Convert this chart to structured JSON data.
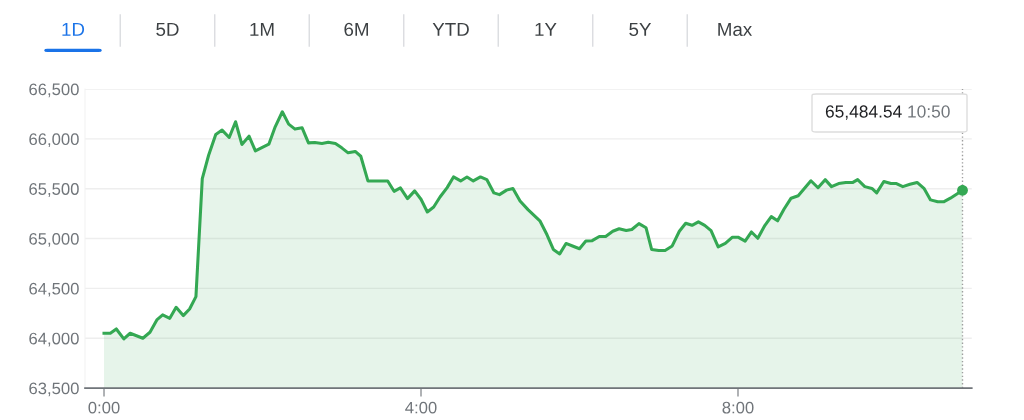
{
  "chart_data": {
    "type": "area",
    "x": [
      0,
      0.08,
      0.155,
      0.25,
      0.33,
      0.49,
      0.58,
      0.67,
      0.74,
      0.83,
      0.91,
      1.0,
      1.08,
      1.16,
      1.24,
      1.32,
      1.41,
      1.49,
      1.58,
      1.66,
      1.74,
      1.83,
      1.91,
      2.08,
      2.16,
      2.25,
      2.33,
      2.41,
      2.5,
      2.58,
      2.66,
      2.75,
      2.83,
      2.92,
      3.0,
      3.08,
      3.17,
      3.24,
      3.33,
      3.58,
      3.66,
      3.74,
      3.83,
      3.92,
      4.0,
      4.08,
      4.16,
      4.24,
      4.33,
      4.41,
      4.5,
      4.58,
      4.66,
      4.75,
      4.83,
      4.92,
      4.99,
      5.08,
      5.16,
      5.25,
      5.35,
      5.5,
      5.59,
      5.67,
      5.75,
      5.83,
      5.92,
      6.0,
      6.08,
      6.16,
      6.25,
      6.33,
      6.42,
      6.5,
      6.59,
      6.66,
      6.75,
      6.84,
      6.91,
      7.0,
      7.08,
      7.17,
      7.26,
      7.34,
      7.42,
      7.5,
      7.58,
      7.66,
      7.75,
      7.84,
      7.93,
      8.0,
      8.09,
      8.17,
      8.25,
      8.34,
      8.42,
      8.5,
      8.58,
      8.67,
      8.76,
      8.92,
      9.01,
      9.1,
      9.18,
      9.27,
      9.36,
      9.45,
      9.51,
      9.6,
      9.69,
      9.75,
      9.84,
      9.93,
      10.0,
      10.08,
      10.17,
      10.26,
      10.35,
      10.43,
      10.52,
      10.6,
      10.68,
      10.833
    ],
    "series": [
      {
        "color": "#34a853",
        "values": [
          64050,
          64050,
          64093,
          63993,
          64050,
          64000,
          64060,
          64187,
          64234,
          64200,
          64311,
          64227,
          64294,
          64418,
          65602,
          65836,
          66044,
          66088,
          66014,
          66172,
          65944,
          66027,
          65880,
          65947,
          66121,
          66272,
          66148,
          66098,
          66111,
          65960,
          65964,
          65954,
          65967,
          65954,
          65910,
          65860,
          65874,
          65826,
          65578,
          65578,
          65474,
          65508,
          65401,
          65478,
          65394,
          65267,
          65317,
          65417,
          65511,
          65618,
          65578,
          65618,
          65578,
          65618,
          65592,
          65458,
          65441,
          65486,
          65503,
          65377,
          65290,
          65178,
          65038,
          64891,
          64846,
          64951,
          64923,
          64898,
          64975,
          64979,
          65021,
          65021,
          65073,
          65098,
          65080,
          65091,
          65150,
          65108,
          64891,
          64881,
          64881,
          64926,
          65073,
          65154,
          65133,
          65168,
          65133,
          65080,
          64916,
          64951,
          65014,
          65014,
          64975,
          65066,
          65003,
          65133,
          65220,
          65178,
          65294,
          65405,
          65430,
          65580,
          65510,
          65591,
          65521,
          65552,
          65563,
          65563,
          65591,
          65521,
          65503,
          65458,
          65573,
          65552,
          65552,
          65521,
          65545,
          65563,
          65500,
          65388,
          65370,
          65370,
          65405,
          65484.54
        ]
      },
      {
        "type": "scatter",
        "color": "#34a853",
        "x": [
          10.833
        ],
        "values": [
          65484.54
        ]
      }
    ],
    "xlim": [
      -0.24,
      10.95
    ],
    "xticks": [
      {
        "value": 0,
        "label": "0:00"
      },
      {
        "value": 4,
        "label": "4:00"
      },
      {
        "value": 8,
        "label": "8:00"
      }
    ],
    "ylim": [
      63500,
      66500
    ],
    "yticks": [
      {
        "value": 63500,
        "label": "63,500"
      },
      {
        "value": 64000,
        "label": "64,000"
      },
      {
        "value": 64500,
        "label": "64,500"
      },
      {
        "value": 65000,
        "label": "65,000"
      },
      {
        "value": 65500,
        "label": "65,500"
      },
      {
        "value": 66000,
        "label": "66,000"
      },
      {
        "value": 66500,
        "label": "66,500"
      }
    ],
    "grid": "y",
    "ref_lines": [
      {
        "axis": "x",
        "value": 10.833,
        "line_style": "dotted",
        "color": "#9e9e9e"
      }
    ],
    "annotations": [
      "1D",
      "5D",
      "1M",
      "6M",
      "YTD",
      "1Y",
      "5Y",
      "Max",
      "65,484.54",
      "10:50"
    ]
  }
}
